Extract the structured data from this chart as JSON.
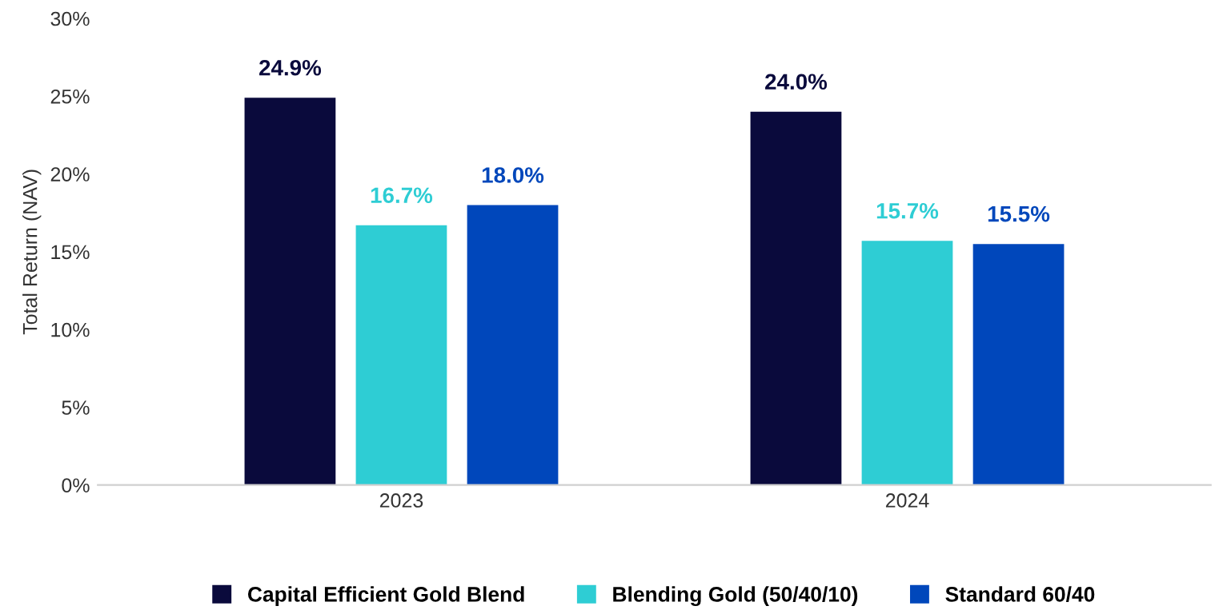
{
  "chart_data": {
    "type": "bar",
    "ylabel": "Total Return (NAV)",
    "categories": [
      "2023",
      "2024"
    ],
    "series": [
      {
        "name": "Capital Efficient Gold Blend",
        "color": "#0a0a3c",
        "values": [
          24.9,
          24.0
        ],
        "value_labels": [
          "24.9%",
          "24.0%"
        ]
      },
      {
        "name": "Blending Gold (50/40/10)",
        "color": "#2ecdd4",
        "values": [
          16.7,
          15.7
        ],
        "value_labels": [
          "16.7%",
          "15.7%"
        ]
      },
      {
        "name": "Standard 60/40",
        "color": "#0047bb",
        "values": [
          18.0,
          15.5
        ],
        "value_labels": [
          "18.0%",
          "15.5%"
        ]
      }
    ],
    "ylim": [
      0,
      30
    ],
    "yticks": [
      {
        "value": 0,
        "label": "0%"
      },
      {
        "value": 5,
        "label": "5%"
      },
      {
        "value": 10,
        "label": "10%"
      },
      {
        "value": 15,
        "label": "15%"
      },
      {
        "value": 20,
        "label": "20%"
      },
      {
        "value": 25,
        "label": "25%"
      },
      {
        "value": 30,
        "label": "30%"
      }
    ],
    "grid": false,
    "legend": "bottom"
  }
}
